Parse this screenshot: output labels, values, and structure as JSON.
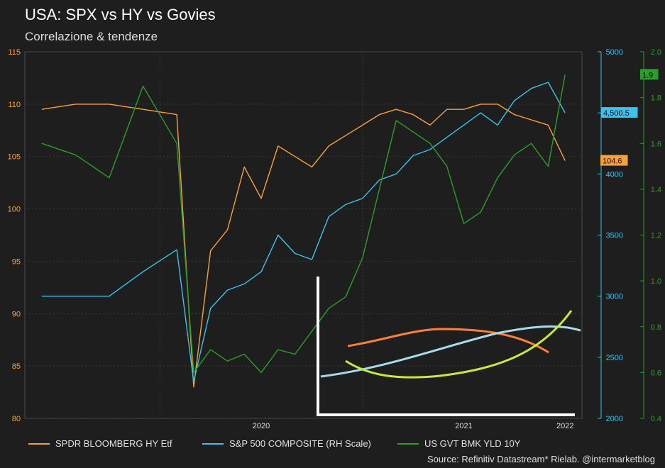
{
  "header": {
    "title": "USA: SPX vs HY vs Govies",
    "subtitle": "Correlazione & tendenze"
  },
  "source": "Source: Refinitiv Datastream* Rielab. @intermarketblog",
  "colors": {
    "hy": "#f7a13a",
    "spx": "#3bc3ec",
    "yld": "#28a028",
    "inset_hy": "#ff7f3a",
    "inset_spx": "#a5dcec",
    "inset_yld": "#c6e93e",
    "bg": "#1e1e1e",
    "grid": "#3a3a3a"
  },
  "chart_data": {
    "type": "line",
    "x_ticks": [
      "2020",
      "2021",
      "2022"
    ],
    "axes": {
      "left": {
        "ticks": [
          "80",
          "85",
          "90",
          "95",
          "100",
          "105",
          "110",
          "115"
        ],
        "range": [
          80,
          115
        ],
        "color": "#f7a13a"
      },
      "right1": {
        "ticks": [
          "2000",
          "2500",
          "3000",
          "3500",
          "4000",
          "4500",
          "5000"
        ],
        "range": [
          2000,
          5000
        ],
        "color": "#3bc3ec"
      },
      "right2": {
        "ticks": [
          "0.4",
          "0.6",
          "0.8",
          "1.0",
          "1.2",
          "1.4",
          "1.6",
          "1.8",
          "2.0"
        ],
        "range": [
          0.4,
          2.0
        ],
        "color": "#28a028"
      }
    },
    "x": [
      "2019-06",
      "2019-08",
      "2019-10",
      "2019-12",
      "2020-02",
      "2020-03",
      "2020-04",
      "2020-05",
      "2020-06",
      "2020-07",
      "2020-08",
      "2020-09",
      "2020-10",
      "2020-11",
      "2020-12",
      "2021-01",
      "2021-02",
      "2021-03",
      "2021-04",
      "2021-05",
      "2021-06",
      "2021-07",
      "2021-08",
      "2021-09",
      "2021-10",
      "2021-11",
      "2021-12",
      "2022-01"
    ],
    "series": [
      {
        "name": "SPDR BLOOMBERG HY Etf",
        "axis": "left",
        "values": [
          109.5,
          110,
          110,
          109.5,
          109,
          83,
          96,
          98,
          104,
          101,
          106,
          105,
          104,
          106,
          107,
          108,
          109,
          109.5,
          109,
          108,
          109.5,
          109.5,
          110,
          110,
          109,
          108.5,
          108,
          104.6
        ]
      },
      {
        "name": "S&P 500 COMPOSITE (RH Scale)",
        "axis": "right1",
        "values": [
          3000,
          3000,
          3000,
          3200,
          3380,
          2300,
          2900,
          3050,
          3100,
          3200,
          3500,
          3350,
          3300,
          3650,
          3750,
          3800,
          3950,
          4000,
          4150,
          4200,
          4300,
          4400,
          4500,
          4400,
          4600,
          4700,
          4750,
          4500.5
        ]
      },
      {
        "name": "US GVT BMK YLD 10Y",
        "axis": "right2",
        "values": [
          1.6,
          1.55,
          1.45,
          1.85,
          1.6,
          0.6,
          0.7,
          0.65,
          0.68,
          0.6,
          0.7,
          0.68,
          0.78,
          0.88,
          0.93,
          1.1,
          1.4,
          1.7,
          1.65,
          1.6,
          1.5,
          1.25,
          1.3,
          1.45,
          1.55,
          1.6,
          1.5,
          1.9
        ]
      }
    ],
    "last_values": [
      "104.6",
      "4,500.5",
      "1.9"
    ]
  }
}
